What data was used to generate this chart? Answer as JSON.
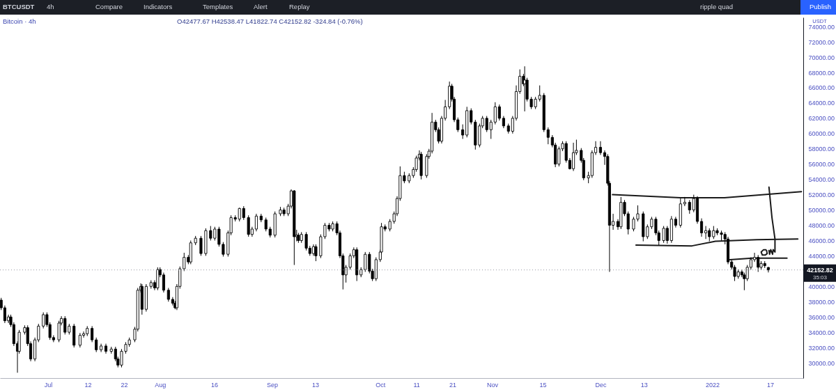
{
  "chart_data": {
    "type": "candlestick",
    "title": "Bitcoin · 4h",
    "subtitle": "O42477.67 H42538.47 L41822.74 C42152.82 -324.84 (-0.76%)",
    "ylabel": "USDT",
    "annotations": [
      "BTCUSDT",
      "4h",
      "Compare",
      "Indicators",
      "Templates",
      "Alert",
      "Replay",
      "ripple quad",
      "Publish",
      "35:03"
    ],
    "color": "#000000",
    "x": [
      "2021-06-18T00:00",
      "2021-06-19T00:00",
      "2021-06-20T00:00",
      "2021-06-20T16:00",
      "2021-06-21T12:00",
      "2021-06-22T12:00",
      "2021-06-23T00:00",
      "2021-06-24T12:00",
      "2021-06-25T08:00",
      "2021-06-26T04:00",
      "2021-06-27T08:00",
      "2021-06-28T08:00",
      "2021-06-29T16:00",
      "2021-06-30T16:00",
      "2021-07-01T12:00",
      "2021-07-02T12:00",
      "2021-07-04T00:00",
      "2021-07-04T16:00",
      "2021-07-05T16:00",
      "2021-07-06T20:00",
      "2021-07-08T04:00",
      "2021-07-09T20:00",
      "2021-07-10T20:00",
      "2021-07-11T20:00",
      "2021-07-13T04:00",
      "2021-07-14T08:00",
      "2021-07-15T16:00",
      "2021-07-17T00:00",
      "2021-07-18T12:00",
      "2021-07-19T16:00",
      "2021-07-20T08:00",
      "2021-07-21T08:00",
      "2021-07-22T12:00",
      "2021-07-23T12:00",
      "2021-07-25T00:00",
      "2021-07-25T20:00",
      "2021-07-26T16:00",
      "2021-07-27T00:00",
      "2021-07-28T04:00",
      "2021-07-29T12:00",
      "2021-07-30T12:00",
      "2021-07-31T08:00",
      "2021-08-01T00:00",
      "2021-08-02T00:00",
      "2021-08-03T08:00",
      "2021-08-04T12:00",
      "2021-08-05T04:00",
      "2021-08-05T16:00",
      "2021-08-06T12:00",
      "2021-08-07T16:00",
      "2021-08-08T20:00",
      "2021-08-09T12:00",
      "2021-08-10T20:00",
      "2021-08-12T08:00",
      "2021-08-13T16:00",
      "2021-08-15T00:00",
      "2021-08-16T04:00",
      "2021-08-17T08:00",
      "2021-08-18T12:00",
      "2021-08-19T20:00",
      "2021-08-20T16:00",
      "2021-08-21T20:00",
      "2021-08-23T00:00",
      "2021-08-24T04:00",
      "2021-08-25T12:00",
      "2021-08-26T12:00",
      "2021-08-27T16:00",
      "2021-08-29T00:00",
      "2021-08-30T08:00",
      "2021-08-31T12:00",
      "2021-09-01T20:00",
      "2021-09-03T08:00",
      "2021-09-04T08:00",
      "2021-09-05T12:00",
      "2021-09-06T08:00",
      "2021-09-07T04:00",
      "2021-09-07T20:00",
      "2021-09-08T08:00",
      "2021-09-09T04:00",
      "2021-09-10T12:00",
      "2021-09-11T12:00",
      "2021-09-12T12:00",
      "2021-09-13T04:00",
      "2021-09-14T12:00",
      "2021-09-15T16:00",
      "2021-09-16T20:00",
      "2021-09-17T20:00",
      "2021-09-19T00:00",
      "2021-09-19T20:00",
      "2021-09-20T16:00",
      "2021-09-21T12:00",
      "2021-09-22T16:00",
      "2021-09-23T16:00",
      "2021-09-24T12:00",
      "2021-09-25T16:00",
      "2021-09-26T20:00",
      "2021-09-28T00:00",
      "2021-09-28T20:00",
      "2021-09-29T20:00",
      "2021-10-01T00:00",
      "2021-10-01T08:00",
      "2021-10-02T08:00",
      "2021-10-03T16:00",
      "2021-10-04T20:00",
      "2021-10-05T16:00",
      "2021-10-06T12:00",
      "2021-10-07T16:00",
      "2021-10-09T00:00",
      "2021-10-10T04:00",
      "2021-10-11T00:00",
      "2021-10-11T20:00",
      "2021-10-12T08:00",
      "2021-10-13T20:00",
      "2021-10-14T12:00",
      "2021-10-15T08:00",
      "2021-10-16T08:00",
      "2021-10-17T04:00",
      "2021-10-18T00:00",
      "2021-10-19T00:00",
      "2021-10-20T04:00",
      "2021-10-20T20:00",
      "2021-10-21T12:00",
      "2021-10-22T12:00",
      "2021-10-23T20:00",
      "2021-10-25T00:00",
      "2021-10-26T04:00",
      "2021-10-27T08:00",
      "2021-10-28T12:00",
      "2021-10-29T08:00",
      "2021-10-30T12:00",
      "2021-10-31T16:00",
      "2021-11-01T20:00",
      "2021-11-03T00:00",
      "2021-11-04T04:00",
      "2021-11-05T12:00",
      "2021-11-06T16:00",
      "2021-11-07T16:00",
      "2021-11-08T16:00",
      "2021-11-09T16:00",
      "2021-11-10T00:00",
      "2021-11-10T16:00",
      "2021-11-11T20:00",
      "2021-11-13T00:00",
      "2021-11-14T04:00",
      "2021-11-15T08:00",
      "2021-11-16T12:00",
      "2021-11-17T16:00",
      "2021-11-18T12:00",
      "2021-11-19T12:00",
      "2021-11-20T12:00",
      "2021-11-21T12:00",
      "2021-11-22T12:00",
      "2021-11-23T12:00",
      "2021-11-24T08:00",
      "2021-11-25T16:00",
      "2021-11-26T08:00",
      "2021-11-27T16:00",
      "2021-11-28T16:00",
      "2021-11-29T16:00",
      "2021-12-01T00:00",
      "2021-12-02T04:00",
      "2021-12-03T00:00",
      "2021-12-03T12:00",
      "2021-12-04T12:00",
      "2021-12-05T20:00",
      "2021-12-06T16:00",
      "2021-12-07T16:00",
      "2021-12-08T16:00",
      "2021-12-10T04:00",
      "2021-12-11T08:00",
      "2021-12-12T20:00",
      "2021-12-14T00:00",
      "2021-12-15T04:00",
      "2021-12-16T08:00",
      "2021-12-17T04:00",
      "2021-12-18T12:00",
      "2021-12-19T12:00",
      "2021-12-20T16:00",
      "2021-12-21T20:00",
      "2021-12-23T04:00",
      "2021-12-24T08:00",
      "2021-12-25T16:00",
      "2021-12-26T20:00",
      "2021-12-27T20:00",
      "2021-12-29T00:00",
      "2021-12-30T04:00",
      "2021-12-31T04:00",
      "2022-01-01T08:00",
      "2022-01-02T08:00",
      "2022-01-03T12:00",
      "2022-01-04T12:00",
      "2022-01-05T08:00",
      "2022-01-06T08:00",
      "2022-01-07T04:00",
      "2022-01-08T04:00",
      "2022-01-09T04:00",
      "2022-01-09T20:00",
      "2022-01-10T16:00",
      "2022-01-11T16:00",
      "2022-01-12T16:00",
      "2022-01-13T16:00",
      "2022-01-14T12:00",
      "2022-01-15T12:00",
      "2022-01-16T12:00"
    ],
    "ohlc": [
      [
        38200,
        38500,
        36900,
        37200
      ],
      [
        37200,
        37500,
        35200,
        35500
      ],
      [
        35500,
        36300,
        35200,
        36000
      ],
      [
        36000,
        36300,
        34700,
        35000
      ],
      [
        35000,
        35300,
        32200,
        32500
      ],
      [
        32500,
        32800,
        28700,
        31500
      ],
      [
        31500,
        34300,
        31200,
        34000
      ],
      [
        34000,
        34900,
        33700,
        34600
      ],
      [
        34600,
        34900,
        32200,
        32500
      ],
      [
        32500,
        32800,
        30200,
        30500
      ],
      [
        30500,
        33300,
        30200,
        33000
      ],
      [
        33000,
        35100,
        32700,
        34800
      ],
      [
        34800,
        36600,
        34500,
        36300
      ],
      [
        36300,
        36600,
        34700,
        35000
      ],
      [
        35000,
        35300,
        33000,
        33300
      ],
      [
        33300,
        33600,
        32700,
        33000
      ],
      [
        33000,
        35500,
        32700,
        35200
      ],
      [
        35200,
        36100,
        34900,
        35800
      ],
      [
        35800,
        36100,
        33700,
        34000
      ],
      [
        34000,
        35100,
        33700,
        34800
      ],
      [
        34800,
        35100,
        32000,
        32300
      ],
      [
        32300,
        33900,
        32000,
        33600
      ],
      [
        33600,
        34100,
        33300,
        33800
      ],
      [
        33800,
        34800,
        33500,
        34500
      ],
      [
        34500,
        34800,
        32700,
        33000
      ],
      [
        33000,
        33300,
        31400,
        31700
      ],
      [
        31700,
        32500,
        31400,
        32200
      ],
      [
        32200,
        32500,
        31200,
        31500
      ],
      [
        31500,
        32100,
        31200,
        31800
      ],
      [
        31800,
        32100,
        30200,
        30500
      ],
      [
        30500,
        30800,
        29400,
        29700
      ],
      [
        29700,
        31800,
        29400,
        31500
      ],
      [
        31500,
        32700,
        31200,
        32400
      ],
      [
        32400,
        33300,
        32100,
        33000
      ],
      [
        33000,
        34700,
        32700,
        34400
      ],
      [
        34400,
        39800,
        34100,
        39500
      ],
      [
        39500,
        40400,
        39200,
        40000
      ],
      [
        40000,
        40300,
        36300,
        37000
      ],
      [
        37000,
        40300,
        36700,
        40000
      ],
      [
        40000,
        40800,
        39700,
        40500
      ],
      [
        40500,
        40800,
        39500,
        39800
      ],
      [
        39800,
        42500,
        39500,
        42200
      ],
      [
        42200,
        42500,
        41200,
        41500
      ],
      [
        41500,
        41800,
        39200,
        39500
      ],
      [
        39500,
        39800,
        38000,
        38300
      ],
      [
        38300,
        38600,
        37500,
        37800
      ],
      [
        37800,
        38100,
        37000,
        37200
      ],
      [
        37200,
        40300,
        36900,
        40000
      ],
      [
        40000,
        42600,
        39700,
        42300
      ],
      [
        42300,
        44400,
        42000,
        43800
      ],
      [
        43800,
        44100,
        42900,
        43200
      ],
      [
        43200,
        46000,
        42900,
        45700
      ],
      [
        45700,
        46600,
        45400,
        46300
      ],
      [
        46300,
        46600,
        44000,
        44300
      ],
      [
        44300,
        47600,
        44000,
        47300
      ],
      [
        47300,
        47900,
        46000,
        46300
      ],
      [
        46300,
        47800,
        46000,
        47500
      ],
      [
        47500,
        47800,
        45200,
        45500
      ],
      [
        45500,
        45800,
        43900,
        44200
      ],
      [
        44200,
        47300,
        43900,
        47000
      ],
      [
        47000,
        49300,
        46700,
        49000
      ],
      [
        49000,
        49300,
        48500,
        48800
      ],
      [
        48800,
        50300,
        48500,
        50200
      ],
      [
        50200,
        50500,
        48700,
        49000
      ],
      [
        49000,
        49300,
        46500,
        46800
      ],
      [
        46800,
        47800,
        46500,
        47500
      ],
      [
        47500,
        49500,
        47200,
        49200
      ],
      [
        49200,
        49500,
        48400,
        48700
      ],
      [
        48700,
        49000,
        47200,
        47500
      ],
      [
        47500,
        47800,
        46400,
        46700
      ],
      [
        46700,
        49800,
        46400,
        49500
      ],
      [
        49500,
        50400,
        49200,
        50000
      ],
      [
        50000,
        50300,
        49200,
        49500
      ],
      [
        49500,
        50800,
        49200,
        50500
      ],
      [
        50500,
        52700,
        50200,
        52500
      ],
      [
        52500,
        52600,
        42800,
        46500
      ],
      [
        46500,
        47400,
        45900,
        46700
      ],
      [
        46700,
        47000,
        45700,
        46000
      ],
      [
        46000,
        47100,
        45700,
        46800
      ],
      [
        46800,
        47100,
        44700,
        45000
      ],
      [
        45000,
        45300,
        44000,
        44300
      ],
      [
        44300,
        45500,
        44000,
        45200
      ],
      [
        45200,
        45500,
        43300,
        44000
      ],
      [
        44000,
        46800,
        43700,
        46500
      ],
      [
        46500,
        48300,
        46200,
        48000
      ],
      [
        48000,
        48300,
        47200,
        47500
      ],
      [
        47500,
        48500,
        47200,
        48200
      ],
      [
        48200,
        48500,
        46700,
        47000
      ],
      [
        47000,
        47300,
        43700,
        44000
      ],
      [
        44000,
        44300,
        39600,
        41500
      ],
      [
        41500,
        42800,
        40500,
        42500
      ],
      [
        42500,
        44300,
        42200,
        44000
      ],
      [
        44000,
        45100,
        43700,
        44800
      ],
      [
        44800,
        45100,
        40700,
        41500
      ],
      [
        41500,
        42500,
        41200,
        42200
      ],
      [
        42200,
        44500,
        41900,
        44200
      ],
      [
        44200,
        44500,
        41700,
        42000
      ],
      [
        42000,
        42300,
        40700,
        41000
      ],
      [
        41000,
        43800,
        40700,
        43500
      ],
      [
        43500,
        44800,
        43200,
        44500
      ],
      [
        44500,
        48300,
        44200,
        47800
      ],
      [
        47800,
        48100,
        47200,
        47500
      ],
      [
        47500,
        48800,
        47200,
        48500
      ],
      [
        48500,
        49800,
        48200,
        49500
      ],
      [
        49500,
        51800,
        49200,
        51500
      ],
      [
        51500,
        55700,
        51200,
        54500
      ],
      [
        54500,
        55000,
        53500,
        53800
      ],
      [
        53800,
        54800,
        53500,
        54500
      ],
      [
        54500,
        55600,
        54200,
        55300
      ],
      [
        55300,
        57100,
        55000,
        56800
      ],
      [
        56800,
        57800,
        56500,
        57300
      ],
      [
        57300,
        57600,
        54000,
        54500
      ],
      [
        54500,
        57300,
        54200,
        57000
      ],
      [
        57000,
        58000,
        56700,
        57700
      ],
      [
        57700,
        62700,
        57400,
        61500
      ],
      [
        61500,
        61800,
        60200,
        60500
      ],
      [
        60500,
        60800,
        58700,
        59000
      ],
      [
        59000,
        62300,
        58700,
        62000
      ],
      [
        62000,
        64400,
        61700,
        63500
      ],
      [
        63500,
        66800,
        63200,
        66200
      ],
      [
        66200,
        66500,
        64200,
        64500
      ],
      [
        64500,
        64800,
        61500,
        61800
      ],
      [
        61800,
        62100,
        60200,
        60500
      ],
      [
        60500,
        61200,
        59300,
        59800
      ],
      [
        59800,
        63500,
        59500,
        63000
      ],
      [
        63000,
        63300,
        61200,
        61500
      ],
      [
        61500,
        61800,
        57900,
        58500
      ],
      [
        58500,
        61300,
        58200,
        61000
      ],
      [
        61000,
        62300,
        60700,
        62000
      ],
      [
        62000,
        62300,
        60200,
        60500
      ],
      [
        60500,
        61800,
        59300,
        61500
      ],
      [
        61500,
        64100,
        61200,
        63500
      ],
      [
        63500,
        63800,
        61700,
        62000
      ],
      [
        62000,
        62300,
        60700,
        61000
      ],
      [
        61000,
        61300,
        60000,
        60300
      ],
      [
        60300,
        62300,
        60000,
        62000
      ],
      [
        62000,
        66300,
        61700,
        65500
      ],
      [
        65500,
        68400,
        65200,
        67500
      ],
      [
        67500,
        67800,
        66200,
        66500
      ],
      [
        66500,
        68800,
        62900,
        67000
      ],
      [
        67000,
        67300,
        64200,
        64500
      ],
      [
        64500,
        64800,
        63200,
        63500
      ],
      [
        63500,
        64800,
        63200,
        64500
      ],
      [
        64500,
        66300,
        64200,
        65000
      ],
      [
        65000,
        65300,
        60200,
        60500
      ],
      [
        60500,
        60800,
        58600,
        59500
      ],
      [
        59500,
        59800,
        58200,
        58500
      ],
      [
        58500,
        58800,
        55600,
        56000
      ],
      [
        56000,
        58300,
        55700,
        58000
      ],
      [
        58000,
        59000,
        57700,
        58700
      ],
      [
        58700,
        59000,
        56200,
        56500
      ],
      [
        56500,
        56800,
        55300,
        55400
      ],
      [
        55400,
        58800,
        55100,
        57500
      ],
      [
        57500,
        59200,
        57200,
        57800
      ],
      [
        57800,
        58100,
        56200,
        56500
      ],
      [
        56500,
        56800,
        53900,
        54200
      ],
      [
        54200,
        55000,
        53500,
        54500
      ],
      [
        54500,
        57800,
        54200,
        57500
      ],
      [
        57500,
        59000,
        57200,
        58200
      ],
      [
        58200,
        59000,
        57200,
        57500
      ],
      [
        57500,
        57800,
        55900,
        57000
      ],
      [
        57000,
        57300,
        53200,
        53500
      ],
      [
        53500,
        53800,
        41900,
        48000
      ],
      [
        48000,
        49500,
        47400,
        48500
      ],
      [
        48500,
        48800,
        47400,
        47800
      ],
      [
        47800,
        51700,
        47500,
        51000
      ],
      [
        51000,
        51300,
        49200,
        49500
      ],
      [
        49500,
        49800,
        46800,
        47500
      ],
      [
        47500,
        49100,
        47200,
        48800
      ],
      [
        48800,
        50600,
        48500,
        49500
      ],
      [
        49500,
        49800,
        45900,
        46500
      ],
      [
        46500,
        48100,
        46200,
        47800
      ],
      [
        47800,
        49100,
        47500,
        48800
      ],
      [
        48800,
        49100,
        46700,
        47000
      ],
      [
        47000,
        47300,
        45400,
        46000
      ],
      [
        46000,
        47900,
        45700,
        47600
      ],
      [
        47600,
        47900,
        45600,
        46000
      ],
      [
        46000,
        49200,
        45700,
        48800
      ],
      [
        48800,
        49100,
        47700,
        48000
      ],
      [
        48000,
        51500,
        47700,
        50800
      ],
      [
        50800,
        51700,
        50500,
        51000
      ],
      [
        51000,
        51300,
        49500,
        50000
      ],
      [
        50000,
        52000,
        49700,
        51500
      ],
      [
        51500,
        51800,
        48200,
        48500
      ],
      [
        48500,
        48900,
        46500,
        47000
      ],
      [
        47000,
        47900,
        46200,
        47300
      ],
      [
        47300,
        47600,
        45900,
        46500
      ],
      [
        46500,
        47900,
        46200,
        47300
      ],
      [
        47300,
        47600,
        46700,
        47000
      ],
      [
        47000,
        47300,
        46000,
        46800
      ],
      [
        46800,
        47100,
        45500,
        46200
      ],
      [
        46200,
        46500,
        42900,
        43200
      ],
      [
        43200,
        43500,
        42200,
        42500
      ],
      [
        42500,
        42800,
        40700,
        41300
      ],
      [
        41300,
        42200,
        41000,
        41900
      ],
      [
        41900,
        42200,
        41200,
        41500
      ],
      [
        41500,
        41800,
        39500,
        41000
      ],
      [
        41000,
        42800,
        40700,
        42500
      ],
      [
        42500,
        43800,
        42200,
        43500
      ],
      [
        43500,
        44400,
        43200,
        43800
      ],
      [
        43800,
        44100,
        41900,
        42500
      ],
      [
        42500,
        43300,
        42200,
        43000
      ],
      [
        43000,
        43300,
        42400,
        42700
      ],
      [
        42477.67,
        42538.47,
        41822.74,
        42152.82
      ]
    ],
    "series": [
      {
        "type": "line",
        "color": "#1a1a1a",
        "x": [
          "2021-12-04T08:00",
          "2021-12-23T04:00",
          "2022-01-04T08:00",
          "2022-01-25T16:00"
        ],
        "values": [
          52000,
          51600,
          51600,
          52400
        ]
      },
      {
        "type": "line",
        "color": "#1a1a1a",
        "x": [
          "2021-12-10T20:00",
          "2021-12-26T08:00",
          "2022-01-01T20:00",
          "2022-01-13T08:00",
          "2022-01-24T16:00"
        ],
        "values": [
          45400,
          45300,
          45900,
          46100,
          46200
        ]
      },
      {
        "type": "line",
        "color": "#1a1a1a",
        "x": [
          "2022-01-05T20:00",
          "2022-01-12T00:00",
          "2022-01-21T16:00"
        ],
        "values": [
          43500,
          43700,
          43700
        ]
      },
      {
        "type": "line",
        "color": "#1a1a1a",
        "x": [
          "2022-01-16T16:00",
          "2022-01-17T12:00",
          "2022-01-18T08:00",
          "2022-01-18T08:00",
          "2022-01-17T20:00",
          "2022-01-17T16:00",
          "2022-01-17T04:00",
          "2022-01-16T20:00",
          "2022-01-16T16:00"
        ],
        "values": [
          53000,
          49000,
          46200,
          44500,
          44800,
          44200,
          44800,
          44200,
          44700
        ]
      },
      {
        "type": "line",
        "color": "#1a1a1a",
        "x": [
          "2022-01-15T20:00",
          "2022-01-15T04:00",
          "2022-01-14T12:00",
          "2022-01-14T20:00",
          "2022-01-15T16:00",
          "2022-01-16T04:00",
          "2022-01-16T00:00"
        ],
        "values": [
          44800,
          44800,
          44500,
          44100,
          44100,
          44300,
          44700
        ]
      }
    ],
    "xlim": [
      "2021-06-17T16:00",
      "2022-01-26T04:00"
    ],
    "ylim": [
      28000,
      75200
    ],
    "xticks": [
      {
        "value": "2021-07-01",
        "label": "Jul"
      },
      {
        "value": "2021-07-12",
        "label": "12"
      },
      {
        "value": "2021-07-22",
        "label": "22"
      },
      {
        "value": "2021-08-01",
        "label": "Aug"
      },
      {
        "value": "2021-08-16",
        "label": "16"
      },
      {
        "value": "2021-09-01",
        "label": "Sep"
      },
      {
        "value": "2021-09-13",
        "label": "13"
      },
      {
        "value": "2021-10-01",
        "label": "Oct"
      },
      {
        "value": "2021-10-11",
        "label": "11"
      },
      {
        "value": "2021-10-21",
        "label": "21"
      },
      {
        "value": "2021-11-01",
        "label": "Nov"
      },
      {
        "value": "2021-11-15",
        "label": "15"
      },
      {
        "value": "2021-12-01",
        "label": "Dec"
      },
      {
        "value": "2021-12-13",
        "label": "13"
      },
      {
        "value": "2022-01-01",
        "label": "2022"
      },
      {
        "value": "2022-01-17",
        "label": "17"
      }
    ],
    "yticks": [
      {
        "value": 30000,
        "label": "30000.00"
      },
      {
        "value": 32000,
        "label": "32000.00"
      },
      {
        "value": 34000,
        "label": "34000.00"
      },
      {
        "value": 36000,
        "label": "36000.00"
      },
      {
        "value": 38000,
        "label": "38000.00"
      },
      {
        "value": 40000,
        "label": "40000.00"
      },
      {
        "value": 44000,
        "label": "44000.00"
      },
      {
        "value": 46000,
        "label": "46000.00"
      },
      {
        "value": 48000,
        "label": "48000.00"
      },
      {
        "value": 50000,
        "label": "50000.00"
      },
      {
        "value": 52000,
        "label": "52000.00"
      },
      {
        "value": 54000,
        "label": "54000.00"
      },
      {
        "value": 56000,
        "label": "56000.00"
      },
      {
        "value": 58000,
        "label": "58000.00"
      },
      {
        "value": 60000,
        "label": "60000.00"
      },
      {
        "value": 62000,
        "label": "62000.00"
      },
      {
        "value": 64000,
        "label": "64000.00"
      },
      {
        "value": 66000,
        "label": "66000.00"
      },
      {
        "value": 68000,
        "label": "68000.00"
      },
      {
        "value": 70000,
        "label": "70000.00"
      },
      {
        "value": 72000,
        "label": "72000.00"
      },
      {
        "value": 74000,
        "label": "74000.00"
      }
    ],
    "ref_lines": [
      {
        "axis": "y",
        "value": 42152.82,
        "label": "42152.82",
        "color": "#9598a1",
        "line_style": "dotted"
      }
    ]
  }
}
